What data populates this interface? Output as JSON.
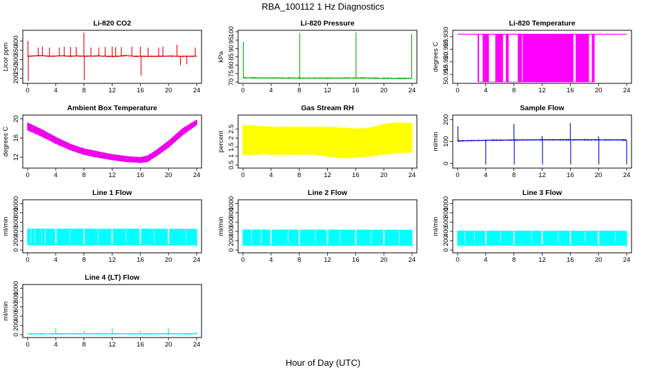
{
  "figure": {
    "title": "RBA_100112  1 Hz Diagnostics",
    "xlabel": "Hour of Day (UTC)"
  },
  "chart_data": [
    {
      "type": "line",
      "title": "Li-820 CO2",
      "ylabel": "Licor ppm",
      "color": "#e00000",
      "xlim": [
        0,
        24
      ],
      "ylim": [
        180,
        450
      ],
      "x_ticks": [
        0,
        4,
        8,
        12,
        16,
        20,
        24
      ],
      "y_ticks": [
        200,
        250,
        300,
        350,
        400
      ],
      "series": [
        {
          "baseline": 318,
          "x": [
            0,
            1,
            2,
            3,
            4,
            5,
            6,
            7,
            8,
            9,
            10,
            11,
            12,
            13,
            14,
            15,
            16,
            17,
            18,
            19,
            20,
            21,
            22,
            23,
            24
          ],
          "y": [
            318,
            320,
            322,
            318,
            319,
            321,
            318,
            320,
            318,
            319,
            320,
            318,
            317,
            319,
            322,
            318,
            318,
            318,
            318,
            318,
            319,
            318,
            318,
            318,
            318
          ],
          "spikes": [
            {
              "x": 0.05,
              "y": 400
            },
            {
              "x": 0.1,
              "y": 185
            },
            {
              "x": 1.5,
              "y": 365
            },
            {
              "x": 2.1,
              "y": 370
            },
            {
              "x": 3.1,
              "y": 365
            },
            {
              "x": 4.5,
              "y": 365
            },
            {
              "x": 5.2,
              "y": 370
            },
            {
              "x": 6.1,
              "y": 368
            },
            {
              "x": 6.9,
              "y": 368
            },
            {
              "x": 8.0,
              "y": 445
            },
            {
              "x": 8.05,
              "y": 190
            },
            {
              "x": 9.0,
              "y": 365
            },
            {
              "x": 10.1,
              "y": 365
            },
            {
              "x": 11.0,
              "y": 368
            },
            {
              "x": 12.0,
              "y": 370
            },
            {
              "x": 12.5,
              "y": 368
            },
            {
              "x": 13.3,
              "y": 368
            },
            {
              "x": 14.8,
              "y": 370
            },
            {
              "x": 16.0,
              "y": 370
            },
            {
              "x": 16.1,
              "y": 215
            },
            {
              "x": 17.1,
              "y": 365
            },
            {
              "x": 18.6,
              "y": 365
            },
            {
              "x": 19.2,
              "y": 370
            },
            {
              "x": 21.2,
              "y": 380
            },
            {
              "x": 21.7,
              "y": 270
            },
            {
              "x": 22.6,
              "y": 275
            },
            {
              "x": 23.8,
              "y": 365
            }
          ]
        }
      ]
    },
    {
      "type": "line",
      "title": "Li-820 Pressure",
      "ylabel": "kPa",
      "color": "#00aa00",
      "xlim": [
        0,
        24
      ],
      "ylim": [
        70,
        100
      ],
      "x_ticks": [
        0,
        4,
        8,
        12,
        16,
        20,
        24
      ],
      "y_ticks": [
        70,
        75,
        80,
        85,
        90,
        95,
        100
      ],
      "series": [
        {
          "baseline": 72.3,
          "x": [
            0,
            4,
            8,
            12,
            16,
            20,
            24
          ],
          "y": [
            72.5,
            72.4,
            72.3,
            72.3,
            72.4,
            72.2,
            72.1
          ],
          "spikes": [
            {
              "x": 0.05,
              "y": 94
            },
            {
              "x": 8.05,
              "y": 99
            },
            {
              "x": 16.05,
              "y": 99.5
            },
            {
              "x": 23.95,
              "y": 98.5
            }
          ]
        }
      ]
    },
    {
      "type": "line",
      "title": "Li-820 Temperature",
      "ylabel": "degrees C",
      "color": "#ff00ff",
      "xlim": [
        0,
        24
      ],
      "ylim": [
        50.912,
        50.932
      ],
      "x_ticks": [
        0,
        4,
        8,
        12,
        16,
        20,
        24
      ],
      "y_ticks": [
        50.915,
        50.92,
        50.925,
        50.93
      ],
      "y_tick_labels": [
        "50.915",
        "50.920",
        "50.925",
        "50.930"
      ],
      "series": [
        {
          "high": 50.931,
          "low": 50.912,
          "drop_intervals": [
            [
              2.9,
              3.0
            ],
            [
              3.6,
              4.4
            ],
            [
              5.4,
              6.4
            ],
            [
              6.9,
              7.2
            ],
            [
              8.6,
              9.1
            ],
            [
              9.3,
              16.4
            ],
            [
              16.8,
              18.6
            ],
            [
              19.1,
              19.4
            ]
          ]
        }
      ]
    },
    {
      "type": "area",
      "title": "Ambient Box Temperature",
      "ylabel": "degrees C",
      "color": "#ee00ee",
      "xlim": [
        0,
        24
      ],
      "ylim": [
        10,
        20.5
      ],
      "x_ticks": [
        0,
        4,
        8,
        12,
        16,
        20,
        24
      ],
      "y_ticks": [
        12,
        16,
        20
      ],
      "series": [
        {
          "x": [
            0,
            2,
            4,
            6,
            8,
            10,
            12,
            14,
            16,
            17,
            18,
            20,
            22,
            24
          ],
          "low": [
            17.6,
            16.3,
            14.8,
            13.5,
            12.5,
            11.9,
            11.4,
            11.0,
            10.8,
            11.0,
            11.9,
            14.0,
            16.6,
            18.7
          ],
          "high": [
            19.2,
            17.8,
            16.2,
            14.8,
            13.8,
            13.2,
            12.6,
            12.2,
            12.0,
            12.3,
            13.2,
            15.4,
            18.0,
            19.8
          ]
        }
      ]
    },
    {
      "type": "area",
      "title": "Gas Stream RH",
      "ylabel": "percent",
      "color": "#ffff00",
      "xlim": [
        0,
        24
      ],
      "ylim": [
        0.4,
        3.2
      ],
      "x_ticks": [
        0,
        4,
        8,
        12,
        16,
        20,
        24
      ],
      "y_ticks": [
        0.5,
        1.0,
        1.5,
        2.0,
        2.5
      ],
      "series": [
        {
          "x": [
            0,
            2,
            4,
            6,
            8,
            10,
            12,
            14,
            16,
            18,
            20,
            22,
            24
          ],
          "low": [
            1.1,
            1.1,
            1.1,
            1.1,
            1.1,
            1.1,
            1.0,
            0.9,
            0.95,
            1.0,
            1.1,
            1.2,
            1.2
          ],
          "high": [
            2.7,
            2.65,
            2.6,
            2.6,
            2.6,
            2.6,
            2.6,
            2.55,
            2.5,
            2.55,
            2.75,
            2.85,
            2.8
          ]
        }
      ]
    },
    {
      "type": "line",
      "title": "Sample Flow",
      "ylabel": "ml/min",
      "color": "#0000cc",
      "xlim": [
        0,
        24
      ],
      "ylim": [
        -15,
        215
      ],
      "x_ticks": [
        0,
        4,
        8,
        12,
        16,
        20,
        24
      ],
      "y_ticks": [
        0,
        100,
        200
      ],
      "series": [
        {
          "baseline": 105,
          "x": [
            0,
            4,
            8,
            12,
            16,
            20,
            24
          ],
          "y": [
            103,
            106,
            107,
            108,
            108,
            108,
            107
          ],
          "spikes": [
            {
              "x": 0.05,
              "y": 170
            },
            {
              "x": 4.0,
              "y": -5
            },
            {
              "x": 8.0,
              "y": 180
            },
            {
              "x": 8.05,
              "y": -5
            },
            {
              "x": 12.0,
              "y": 125
            },
            {
              "x": 12.05,
              "y": -5
            },
            {
              "x": 16.0,
              "y": 185
            },
            {
              "x": 16.05,
              "y": -5
            },
            {
              "x": 20.0,
              "y": 125
            },
            {
              "x": 20.05,
              "y": -5
            },
            {
              "x": 24.0,
              "y": -5
            }
          ]
        }
      ]
    },
    {
      "type": "area",
      "title": "Line 1 Flow",
      "ylabel": "ml/min",
      "color": "#00ffff",
      "xlim": [
        0,
        24
      ],
      "ylim": [
        -30,
        1050
      ],
      "x_ticks": [
        0,
        4,
        8,
        12,
        16,
        20,
        24
      ],
      "y_ticks": [
        0,
        200,
        400,
        600,
        800,
        1000
      ],
      "series": [
        {
          "x": [
            0,
            24
          ],
          "low": [
            110,
            110
          ],
          "high": [
            455,
            450
          ],
          "gaps": [
            4.0,
            8.0,
            12.0,
            16.0,
            20.0
          ],
          "extra_notches": [
            0.5,
            1.0,
            2.0,
            2.5,
            6.0,
            10.0,
            14.0,
            18.0,
            22.5
          ]
        }
      ]
    },
    {
      "type": "area",
      "title": "Line 2 Flow",
      "ylabel": "ml/min",
      "color": "#00ffff",
      "xlim": [
        0,
        24
      ],
      "ylim": [
        -30,
        1050
      ],
      "x_ticks": [
        0,
        4,
        8,
        12,
        16,
        20,
        24
      ],
      "y_ticks": [
        0,
        200,
        400,
        600,
        800,
        1000
      ],
      "series": [
        {
          "x": [
            0,
            24
          ],
          "low": [
            100,
            100
          ],
          "high": [
            435,
            430
          ],
          "gaps": [
            4.0,
            8.0,
            12.0,
            16.0,
            20.0
          ],
          "extra_notches": [
            1.2,
            2.6,
            6.4,
            10.3,
            13.8,
            18.2,
            22.2
          ]
        }
      ]
    },
    {
      "type": "area",
      "title": "Line 3 Flow",
      "ylabel": "ml/min",
      "color": "#00ffff",
      "xlim": [
        0,
        24
      ],
      "ylim": [
        -30,
        1050
      ],
      "x_ticks": [
        0,
        4,
        8,
        12,
        16,
        20,
        24
      ],
      "y_ticks": [
        0,
        200,
        400,
        600,
        800,
        1000
      ],
      "series": [
        {
          "x": [
            0,
            24
          ],
          "low": [
            100,
            100
          ],
          "high": [
            410,
            410
          ],
          "gaps": [
            4.0,
            8.0,
            12.0,
            16.0,
            20.0
          ],
          "extra_notches": [
            1.0,
            2.4,
            6.1,
            10.5,
            14.3,
            18.1,
            22.4
          ]
        }
      ]
    },
    {
      "type": "line",
      "title": "Line 4 (LT) Flow",
      "ylabel": "ml/min",
      "color": "#00e0e0",
      "xlim": [
        0,
        24
      ],
      "ylim": [
        -30,
        1050
      ],
      "x_ticks": [
        0,
        4,
        8,
        12,
        16,
        20,
        24
      ],
      "y_ticks": [
        0,
        200,
        400,
        600,
        800,
        1000
      ],
      "series": [
        {
          "baseline": 20,
          "x": [
            0,
            24
          ],
          "y": [
            20,
            20
          ],
          "spikes": [
            {
              "x": 4.0,
              "y": 150
            },
            {
              "x": 8.0,
              "y": 90
            },
            {
              "x": 12.0,
              "y": 140
            },
            {
              "x": 16.0,
              "y": 80
            },
            {
              "x": 20.0,
              "y": 140
            },
            {
              "x": 24.0,
              "y": 60
            }
          ]
        }
      ]
    }
  ]
}
